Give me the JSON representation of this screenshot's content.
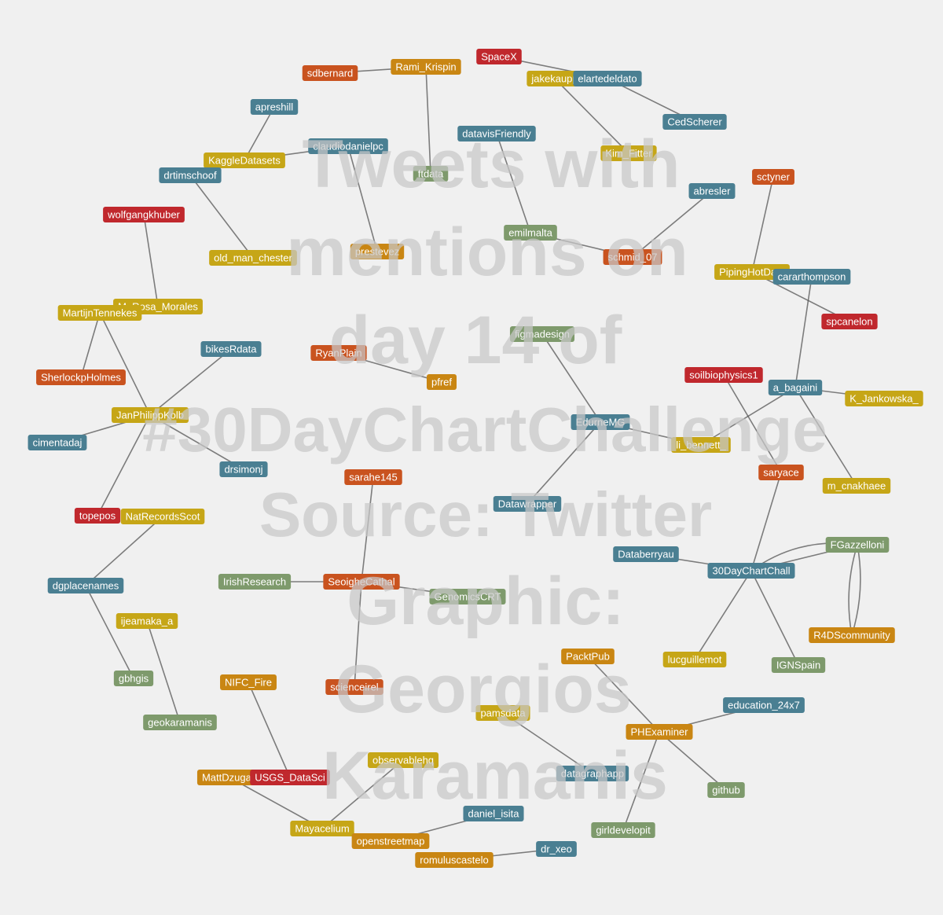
{
  "watermark": {
    "lines": [
      "Tweets with",
      "mentions on",
      "day 14 of",
      "#30DayChartChallenge",
      "Source: Twitter",
      "Graphic:",
      "Georgios",
      "Karamanis"
    ],
    "color": "#c8c8c8"
  },
  "palette": {
    "red": "#c0282d",
    "orange": "#c9531f",
    "amber": "#c98613",
    "yellow": "#c6a617",
    "blue": "#4a7f92",
    "green": "#7e9a6c",
    "edge": "#555555"
  },
  "nodes": [
    {
      "id": "sdbernard",
      "color": "orange"
    },
    {
      "id": "Rami_Krispin",
      "color": "amber"
    },
    {
      "id": "SpaceX",
      "color": "red"
    },
    {
      "id": "jakekaupp",
      "color": "yellow"
    },
    {
      "id": "elartedeldato",
      "color": "blue"
    },
    {
      "id": "apreshill",
      "color": "blue"
    },
    {
      "id": "claudiodanielpc",
      "color": "blue"
    },
    {
      "id": "KaggleDatasets",
      "color": "yellow"
    },
    {
      "id": "drtimschoof",
      "color": "blue"
    },
    {
      "id": "ftdata",
      "color": "green"
    },
    {
      "id": "datavisFriendly",
      "color": "blue"
    },
    {
      "id": "CedScherer",
      "color": "blue"
    },
    {
      "id": "Kim_Fitter",
      "color": "yellow"
    },
    {
      "id": "sctyner",
      "color": "orange"
    },
    {
      "id": "abresler",
      "color": "blue"
    },
    {
      "id": "wolfgangkhuber",
      "color": "red"
    },
    {
      "id": "emilmalta",
      "color": "green"
    },
    {
      "id": "old_man_chester",
      "color": "yellow"
    },
    {
      "id": "prestevez",
      "color": "amber"
    },
    {
      "id": "schmid_07",
      "color": "orange"
    },
    {
      "id": "PipingHotData",
      "color": "yellow"
    },
    {
      "id": "cararthompson",
      "color": "blue"
    },
    {
      "id": "M_Rosa_Morales",
      "color": "yellow"
    },
    {
      "id": "MartijnTennekes",
      "color": "yellow"
    },
    {
      "id": "spcanelon",
      "color": "red"
    },
    {
      "id": "figmadesign",
      "color": "green"
    },
    {
      "id": "bikesRdata",
      "color": "blue"
    },
    {
      "id": "RyanPlain",
      "color": "orange"
    },
    {
      "id": "SherlockpHolmes",
      "color": "orange"
    },
    {
      "id": "pfref",
      "color": "amber"
    },
    {
      "id": "soilbiophysics1",
      "color": "red"
    },
    {
      "id": "a_bagaini",
      "color": "blue"
    },
    {
      "id": "K_Jankowska_",
      "color": "yellow"
    },
    {
      "id": "JanPhilippKolb",
      "color": "yellow"
    },
    {
      "id": "EdurneMG",
      "color": "blue"
    },
    {
      "id": "li_bennett_",
      "color": "yellow"
    },
    {
      "id": "cimentadaj",
      "color": "blue"
    },
    {
      "id": "drsimonj",
      "color": "blue"
    },
    {
      "id": "sarahe145",
      "color": "orange"
    },
    {
      "id": "saryace",
      "color": "orange"
    },
    {
      "id": "m_cnakhaee",
      "color": "yellow"
    },
    {
      "id": "Datawrapper",
      "color": "blue"
    },
    {
      "id": "topepos",
      "color": "red"
    },
    {
      "id": "NatRecordsScot",
      "color": "yellow"
    },
    {
      "id": "FGazzelloni",
      "color": "green"
    },
    {
      "id": "Databerryau",
      "color": "blue"
    },
    {
      "id": "30DayChartChall",
      "color": "blue"
    },
    {
      "id": "IrishResearch",
      "color": "green"
    },
    {
      "id": "SeoigheCathal",
      "color": "orange"
    },
    {
      "id": "dgplacenames",
      "color": "blue"
    },
    {
      "id": "GenomicsCRT",
      "color": "green"
    },
    {
      "id": "ijeamaka_a",
      "color": "yellow"
    },
    {
      "id": "R4DScommunity",
      "color": "amber"
    },
    {
      "id": "PacktPub",
      "color": "amber"
    },
    {
      "id": "lucguillemot",
      "color": "yellow"
    },
    {
      "id": "IGNSpain",
      "color": "green"
    },
    {
      "id": "gbhgis",
      "color": "green"
    },
    {
      "id": "NIFC_Fire",
      "color": "amber"
    },
    {
      "id": "scienceirel",
      "color": "orange"
    },
    {
      "id": "education_24x7",
      "color": "blue"
    },
    {
      "id": "pamsdata",
      "color": "yellow"
    },
    {
      "id": "PHExaminer",
      "color": "amber"
    },
    {
      "id": "geokaramanis",
      "color": "green"
    },
    {
      "id": "observablehq",
      "color": "yellow"
    },
    {
      "id": "MattDzugan",
      "color": "amber"
    },
    {
      "id": "USGS_DataSci",
      "color": "red"
    },
    {
      "id": "datagraphapp",
      "color": "blue"
    },
    {
      "id": "github",
      "color": "green"
    },
    {
      "id": "daniel_isita",
      "color": "blue"
    },
    {
      "id": "Mayacelium",
      "color": "yellow"
    },
    {
      "id": "girldevelopit",
      "color": "green"
    },
    {
      "id": "openstreetmap",
      "color": "amber"
    },
    {
      "id": "dr_xeo",
      "color": "blue"
    },
    {
      "id": "romuluscastelo",
      "color": "amber"
    }
  ],
  "edges": [
    [
      "sdbernard",
      "Rami_Krispin"
    ],
    [
      "Rami_Krispin",
      "ftdata"
    ],
    [
      "SpaceX",
      "elartedeldato"
    ],
    [
      "elartedeldato",
      "CedScherer"
    ],
    [
      "jakekaupp",
      "Kim_Fitter"
    ],
    [
      "apreshill",
      "KaggleDatasets"
    ],
    [
      "claudiodanielpc",
      "KaggleDatasets"
    ],
    [
      "KaggleDatasets",
      "drtimschoof"
    ],
    [
      "drtimschoof",
      "old_man_chester"
    ],
    [
      "claudiodanielpc",
      "prestevez"
    ],
    [
      "datavisFriendly",
      "emilmalta"
    ],
    [
      "emilmalta",
      "schmid_07"
    ],
    [
      "abresler",
      "schmid_07"
    ],
    [
      "sctyner",
      "PipingHotData"
    ],
    [
      "PipingHotData",
      "spcanelon"
    ],
    [
      "cararthompson",
      "a_bagaini"
    ],
    [
      "wolfgangkhuber",
      "M_Rosa_Morales"
    ],
    [
      "MartijnTennekes",
      "SherlockpHolmes"
    ],
    [
      "MartijnTennekes",
      "JanPhilippKolb"
    ],
    [
      "bikesRdata",
      "JanPhilippKolb"
    ],
    [
      "JanPhilippKolb",
      "cimentadaj"
    ],
    [
      "JanPhilippKolb",
      "drsimonj"
    ],
    [
      "JanPhilippKolb",
      "topepos"
    ],
    [
      "RyanPlain",
      "pfref"
    ],
    [
      "figmadesign",
      "EdurneMG"
    ],
    [
      "EdurneMG",
      "li_bennett_"
    ],
    [
      "EdurneMG",
      "Datawrapper"
    ],
    [
      "a_bagaini",
      "li_bennett_"
    ],
    [
      "a_bagaini",
      "K_Jankowska_"
    ],
    [
      "a_bagaini",
      "m_cnakhaee"
    ],
    [
      "soilbiophysics1",
      "saryace"
    ],
    [
      "saryace",
      "30DayChartChall"
    ],
    [
      "Databerryau",
      "30DayChartChall"
    ],
    [
      "30DayChartChall",
      "FGazzelloni"
    ],
    [
      "30DayChartChall",
      "lucguillemot"
    ],
    [
      "30DayChartChall",
      "IGNSpain"
    ],
    [
      "NatRecordsScot",
      "dgplacenames"
    ],
    [
      "dgplacenames",
      "gbhgis"
    ],
    [
      "ijeamaka_a",
      "geokaramanis"
    ],
    [
      "sarahe145",
      "SeoigheCathal"
    ],
    [
      "IrishResearch",
      "SeoigheCathal"
    ],
    [
      "SeoigheCathal",
      "GenomicsCRT"
    ],
    [
      "SeoigheCathal",
      "scienceirel"
    ],
    [
      "PacktPub",
      "PHExaminer"
    ],
    [
      "education_24x7",
      "PHExaminer"
    ],
    [
      "PHExaminer",
      "github"
    ],
    [
      "PHExaminer",
      "girldevelopit"
    ],
    [
      "pamsdata",
      "datagraphapp"
    ],
    [
      "NIFC_Fire",
      "USGS_DataSci"
    ],
    [
      "MattDzugan",
      "Mayacelium"
    ],
    [
      "observablehq",
      "Mayacelium"
    ],
    [
      "daniel_isita",
      "openstreetmap"
    ],
    [
      "romuluscastelo",
      "dr_xeo"
    ]
  ],
  "curved_edges": [
    [
      "30DayChartChall",
      "FGazzelloni"
    ],
    [
      "FGazzelloni",
      "R4DScommunity"
    ],
    [
      "FGazzelloni",
      "R4DScommunity"
    ]
  ]
}
